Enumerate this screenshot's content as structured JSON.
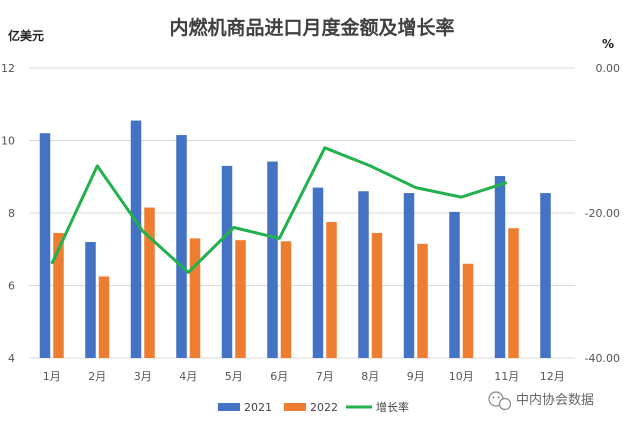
{
  "chart_data": {
    "type": "bar",
    "title": "内燃机商品进口月度金额及增长率",
    "ylabel_left": "亿美元",
    "ylabel_right": "%",
    "categories": [
      "1月",
      "2月",
      "3月",
      "4月",
      "5月",
      "6月",
      "7月",
      "8月",
      "9月",
      "10月",
      "11月",
      "12月"
    ],
    "series": [
      {
        "name": "2021",
        "kind": "bar",
        "axis": "left",
        "color": "#4472C4",
        "values": [
          10.2,
          7.2,
          10.55,
          10.15,
          9.3,
          9.42,
          8.7,
          8.6,
          8.55,
          8.03,
          9.02,
          8.55
        ]
      },
      {
        "name": "2022",
        "kind": "bar",
        "axis": "left",
        "color": "#ED7D31",
        "values": [
          7.45,
          6.25,
          8.15,
          7.3,
          7.25,
          7.22,
          7.75,
          7.45,
          7.15,
          6.6,
          7.58,
          null
        ]
      },
      {
        "name": "增长率",
        "kind": "line",
        "axis": "right",
        "color": "#22B14C",
        "values": [
          -27.0,
          -13.5,
          -22.5,
          -28.2,
          -22.0,
          -23.5,
          -11.0,
          -13.5,
          -16.5,
          -17.8,
          -15.8,
          null
        ]
      }
    ],
    "ylim_left": [
      4,
      12
    ],
    "yticks_left": [
      "4",
      "6",
      "8",
      "10",
      "12"
    ],
    "ylim_right": [
      -40,
      0
    ],
    "yticks_right": [
      "-40.00",
      "-20.00",
      "0.00"
    ],
    "grid": true,
    "legend_position": "bottom"
  },
  "watermark": {
    "icon": "wechat-icon",
    "text": "中内协会数据"
  }
}
